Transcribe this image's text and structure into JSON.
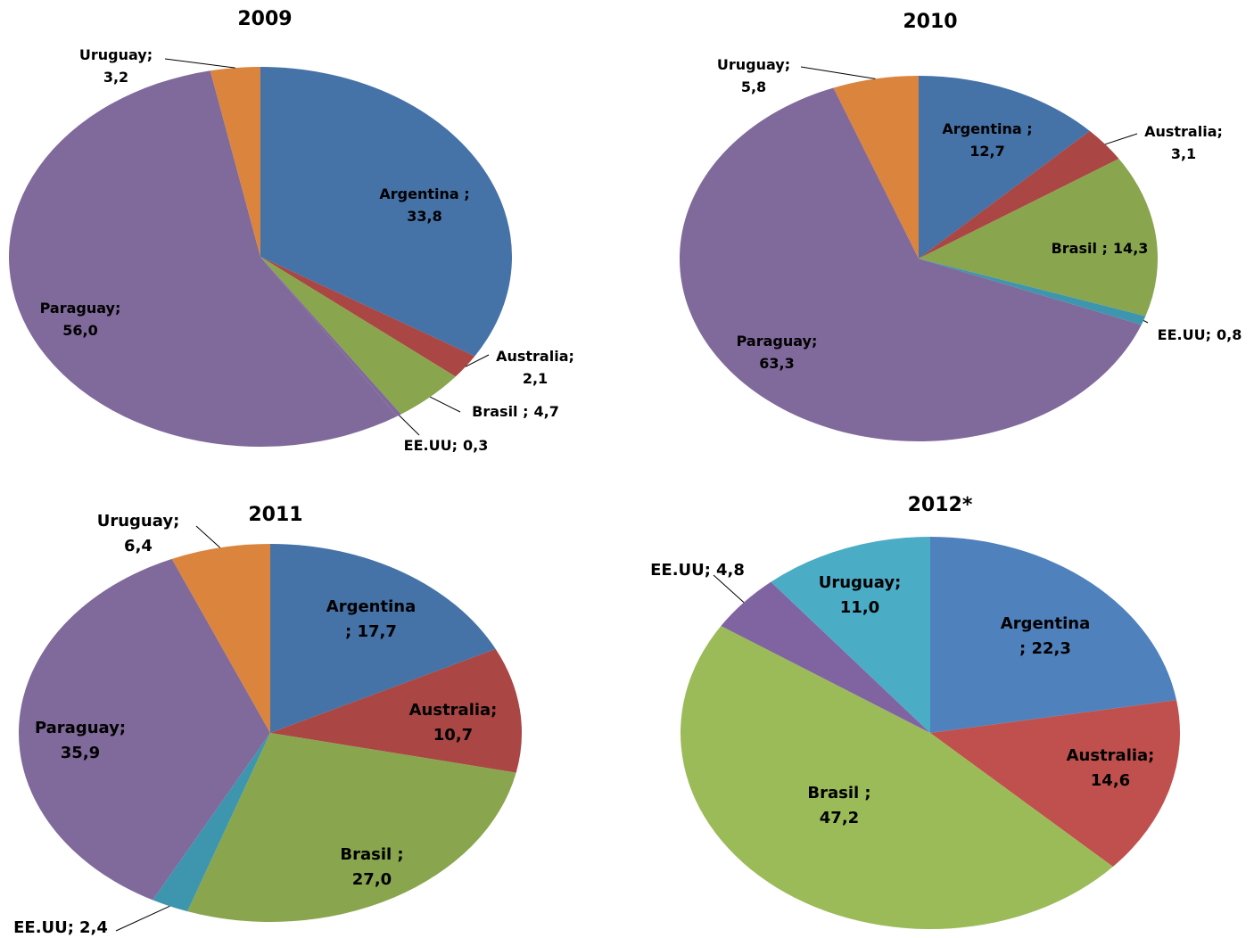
{
  "chart_data": [
    {
      "type": "pie",
      "title": "2009",
      "categories": [
        "Argentina ;",
        "Australia;",
        "Brasil ;",
        "EE.UU;",
        "Paraguay;",
        "Uruguay;"
      ],
      "values": [
        33.8,
        2.1,
        4.7,
        0.3,
        56.0,
        3.2
      ],
      "value_labels": [
        "33,8",
        "2,1",
        "4,7",
        "0,3",
        "56,0",
        "3,2"
      ],
      "colors": [
        "#4572a7",
        "#aa4643",
        "#89a54e",
        "#80699b",
        "#80699b",
        "#db843d"
      ]
    },
    {
      "type": "pie",
      "title": "2010",
      "categories": [
        "Argentina ;",
        "Australia;",
        "Brasil ;",
        "EE.UU;",
        "Paraguay;",
        "Uruguay;"
      ],
      "values": [
        12.7,
        3.1,
        14.3,
        0.8,
        63.3,
        5.8
      ],
      "value_labels": [
        "12,7",
        "3,1",
        "14,3",
        "0,8",
        "63,3",
        "5,8"
      ],
      "colors": [
        "#4572a7",
        "#aa4643",
        "#89a54e",
        "#3d96ae",
        "#80699b",
        "#db843d"
      ]
    },
    {
      "type": "pie",
      "title": "2011",
      "categories": [
        "Argentina",
        "Australia;",
        "Brasil ;",
        "EE.UU;",
        "Paraguay;",
        "Uruguay;"
      ],
      "values": [
        17.7,
        10.7,
        27.0,
        2.4,
        35.9,
        6.4
      ],
      "value_labels": [
        "; 17,7",
        "10,7",
        "27,0",
        "2,4",
        "35,9",
        "6,4"
      ],
      "colors": [
        "#4572a7",
        "#aa4643",
        "#89a54e",
        "#3d96ae",
        "#80699b",
        "#db843d"
      ]
    },
    {
      "type": "pie",
      "title": "2012*",
      "categories": [
        "Argentina",
        "Australia;",
        "Brasil ;",
        "EE.UU;",
        "Uruguay;"
      ],
      "values": [
        22.3,
        14.6,
        47.2,
        4.8,
        11.0
      ],
      "value_labels": [
        "; 22,3",
        "14,6",
        "47,2",
        "4,8",
        "11,0"
      ],
      "colors": [
        "#4f81bd",
        "#c0504d",
        "#9bbb59",
        "#8064a2",
        "#4bacc6"
      ]
    }
  ]
}
